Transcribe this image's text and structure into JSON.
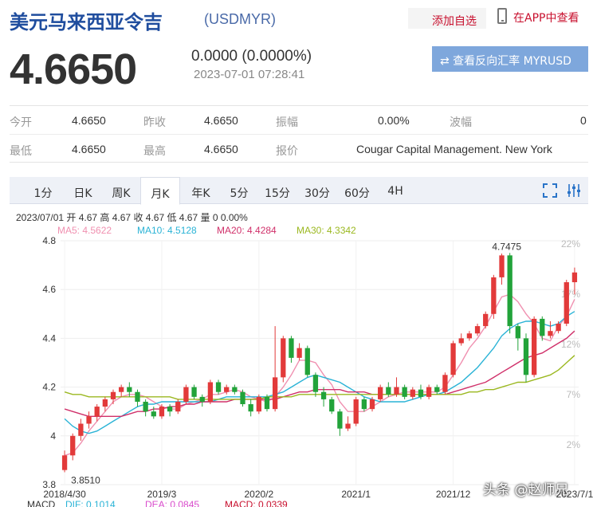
{
  "header": {
    "title": "美元马来西亚令吉",
    "code": "(USDMYR)",
    "add_favorite": "添加自选",
    "view_in_app": "在APP中查看"
  },
  "quote": {
    "price": "4.6650",
    "change": "0.0000 (0.0000%)",
    "time": "2023-07-01 07:28:41",
    "reverse_button": "⇄ 查看反向汇率 MYRUSD"
  },
  "stats": {
    "open_label": "今开",
    "open": "4.6650",
    "prev_close_label": "昨收",
    "prev_close": "4.6650",
    "amplitude_label": "振幅",
    "amplitude": "0.00%",
    "wave_label": "波幅",
    "wave": "0",
    "low_label": "最低",
    "low": "4.6650",
    "high_label": "最高",
    "high": "4.6650",
    "quote_label": "报价",
    "quote_source": "Cougar Capital Management. New York"
  },
  "tabs": [
    "1分",
    "日K",
    "周K",
    "月K",
    "年K",
    "5分",
    "15分",
    "30分",
    "60分",
    "4H"
  ],
  "active_tab": "月K",
  "chart_info": {
    "summary": "2023/07/01 开 4.67 高 4.67 收 4.67 低 4.67 量 0 0.00%",
    "ma5": "MA5: 4.5622",
    "ma10": "MA10: 4.5128",
    "ma20": "MA20: 4.4284",
    "ma30": "MA30: 4.3342",
    "ma_colors": {
      "ma5": "#f090b0",
      "ma10": "#2ab3d6",
      "ma20": "#d0306a",
      "ma30": "#9bb820"
    },
    "bottom": {
      "macd_label": "MACD",
      "dif": "DIF: 0.1014",
      "dea": "DEA: 0.0845",
      "macd": "MACD: 0.0339"
    },
    "watermark": "头条 @赵师兄"
  },
  "chart_data": {
    "type": "candlestick",
    "title": "",
    "y_ticks": [
      "4.8",
      "4.6",
      "4.4",
      "4.2",
      "4",
      "3.8"
    ],
    "y_right_ticks": [
      "22%",
      "17%",
      "12%",
      "7%",
      "2%"
    ],
    "x_ticks": [
      "2018/4/30",
      "2019/3",
      "2020/2",
      "2021/1",
      "2021/12",
      "2023/7/1"
    ],
    "ylim": [
      3.8,
      4.8
    ],
    "max_label": "4.7475",
    "min_label": "3.8510",
    "up_color": "#e23a3a",
    "down_color": "#22a33a",
    "candles": [
      [
        3.86,
        3.92,
        3.94,
        3.851
      ],
      [
        3.92,
        4.0,
        4.01,
        3.9
      ],
      [
        4.0,
        4.05,
        4.07,
        3.98
      ],
      [
        4.05,
        4.08,
        4.1,
        4.03
      ],
      [
        4.08,
        4.12,
        4.13,
        4.06
      ],
      [
        4.12,
        4.15,
        4.16,
        4.1
      ],
      [
        4.15,
        4.18,
        4.19,
        4.13
      ],
      [
        4.18,
        4.2,
        4.21,
        4.16
      ],
      [
        4.2,
        4.18,
        4.22,
        4.16
      ],
      [
        4.18,
        4.14,
        4.19,
        4.12
      ],
      [
        4.14,
        4.1,
        4.15,
        4.08
      ],
      [
        4.1,
        4.08,
        4.12,
        4.07
      ],
      [
        4.08,
        4.12,
        4.13,
        4.07
      ],
      [
        4.12,
        4.1,
        4.13,
        4.08
      ],
      [
        4.1,
        4.14,
        4.15,
        4.09
      ],
      [
        4.14,
        4.2,
        4.21,
        4.13
      ],
      [
        4.2,
        4.16,
        4.21,
        4.15
      ],
      [
        4.16,
        4.14,
        4.17,
        4.12
      ],
      [
        4.14,
        4.22,
        4.23,
        4.13
      ],
      [
        4.22,
        4.18,
        4.23,
        4.17
      ],
      [
        4.18,
        4.2,
        4.21,
        4.17
      ],
      [
        4.2,
        4.18,
        4.21,
        4.17
      ],
      [
        4.18,
        4.13,
        4.19,
        4.12
      ],
      [
        4.13,
        4.1,
        4.15,
        4.08
      ],
      [
        4.1,
        4.16,
        4.17,
        4.09
      ],
      [
        4.16,
        4.11,
        4.17,
        4.1
      ],
      [
        4.11,
        4.24,
        4.45,
        4.1
      ],
      [
        4.24,
        4.4,
        4.41,
        4.22
      ],
      [
        4.4,
        4.32,
        4.41,
        4.3
      ],
      [
        4.32,
        4.36,
        4.38,
        4.31
      ],
      [
        4.36,
        4.25,
        4.37,
        4.24
      ],
      [
        4.25,
        4.18,
        4.26,
        4.16
      ],
      [
        4.18,
        4.15,
        4.2,
        4.12
      ],
      [
        4.15,
        4.1,
        4.16,
        4.09
      ],
      [
        4.1,
        4.03,
        4.11,
        4.0
      ],
      [
        4.03,
        4.05,
        4.08,
        4.02
      ],
      [
        4.05,
        4.15,
        4.16,
        4.04
      ],
      [
        4.15,
        4.11,
        4.16,
        4.1
      ],
      [
        4.11,
        4.15,
        4.16,
        4.1
      ],
      [
        4.15,
        4.2,
        4.21,
        4.14
      ],
      [
        4.2,
        4.17,
        4.22,
        4.16
      ],
      [
        4.17,
        4.2,
        4.24,
        4.16
      ],
      [
        4.2,
        4.16,
        4.21,
        4.15
      ],
      [
        4.16,
        4.19,
        4.2,
        4.15
      ],
      [
        4.19,
        4.16,
        4.21,
        4.15
      ],
      [
        4.16,
        4.2,
        4.21,
        4.15
      ],
      [
        4.2,
        4.18,
        4.21,
        4.17
      ],
      [
        4.18,
        4.25,
        4.26,
        4.17
      ],
      [
        4.25,
        4.38,
        4.39,
        4.24
      ],
      [
        4.38,
        4.4,
        4.42,
        4.37
      ],
      [
        4.4,
        4.42,
        4.43,
        4.39
      ],
      [
        4.42,
        4.45,
        4.46,
        4.41
      ],
      [
        4.45,
        4.5,
        4.51,
        4.44
      ],
      [
        4.5,
        4.65,
        4.66,
        4.48
      ],
      [
        4.65,
        4.74,
        4.7475,
        4.62
      ],
      [
        4.74,
        4.45,
        4.75,
        4.42
      ],
      [
        4.45,
        4.4,
        4.46,
        4.35
      ],
      [
        4.4,
        4.25,
        4.42,
        4.22
      ],
      [
        4.25,
        4.48,
        4.49,
        4.24
      ],
      [
        4.48,
        4.41,
        4.49,
        4.39
      ],
      [
        4.41,
        4.43,
        4.47,
        4.4
      ],
      [
        4.43,
        4.46,
        4.47,
        4.42
      ],
      [
        4.46,
        4.63,
        4.64,
        4.45
      ],
      [
        4.63,
        4.67,
        4.69,
        4.58
      ]
    ],
    "series": [
      {
        "name": "MA5",
        "color": "#f090b0",
        "values": [
          3.92,
          3.93,
          3.97,
          4.02,
          4.06,
          4.1,
          4.14,
          4.16,
          4.17,
          4.17,
          4.16,
          4.14,
          4.12,
          4.11,
          4.11,
          4.13,
          4.14,
          4.15,
          4.17,
          4.17,
          4.18,
          4.19,
          4.18,
          4.16,
          4.15,
          4.14,
          4.16,
          4.2,
          4.25,
          4.31,
          4.31,
          4.3,
          4.25,
          4.21,
          4.14,
          4.1,
          4.1,
          4.1,
          4.12,
          4.14,
          4.16,
          4.17,
          4.18,
          4.18,
          4.18,
          4.18,
          4.18,
          4.2,
          4.25,
          4.3,
          4.36,
          4.4,
          4.45,
          4.51,
          4.57,
          4.58,
          4.55,
          4.5,
          4.46,
          4.4,
          4.39,
          4.45,
          4.49,
          4.56
        ]
      },
      {
        "name": "MA10",
        "color": "#2ab3d6",
        "values": [
          4.07,
          4.04,
          4.02,
          4.01,
          4.02,
          4.04,
          4.06,
          4.08,
          4.1,
          4.12,
          4.13,
          4.13,
          4.14,
          4.14,
          4.14,
          4.14,
          4.14,
          4.14,
          4.14,
          4.15,
          4.16,
          4.16,
          4.16,
          4.16,
          4.16,
          4.16,
          4.17,
          4.18,
          4.2,
          4.22,
          4.24,
          4.25,
          4.24,
          4.23,
          4.22,
          4.2,
          4.18,
          4.16,
          4.15,
          4.14,
          4.14,
          4.14,
          4.14,
          4.15,
          4.16,
          4.17,
          4.17,
          4.18,
          4.2,
          4.22,
          4.25,
          4.28,
          4.32,
          4.36,
          4.41,
          4.44,
          4.46,
          4.47,
          4.47,
          4.46,
          4.45,
          4.46,
          4.49,
          4.51
        ]
      },
      {
        "name": "MA20",
        "color": "#d0306a",
        "values": [
          4.11,
          4.1,
          4.09,
          4.08,
          4.08,
          4.08,
          4.08,
          4.08,
          4.09,
          4.1,
          4.1,
          4.11,
          4.11,
          4.12,
          4.12,
          4.13,
          4.13,
          4.14,
          4.14,
          4.14,
          4.14,
          4.15,
          4.15,
          4.15,
          4.15,
          4.15,
          4.15,
          4.16,
          4.17,
          4.18,
          4.18,
          4.19,
          4.19,
          4.19,
          4.19,
          4.18,
          4.18,
          4.18,
          4.17,
          4.17,
          4.17,
          4.17,
          4.17,
          4.17,
          4.17,
          4.17,
          4.17,
          4.17,
          4.18,
          4.19,
          4.2,
          4.21,
          4.22,
          4.24,
          4.26,
          4.28,
          4.3,
          4.32,
          4.33,
          4.34,
          4.36,
          4.38,
          4.4,
          4.43
        ]
      },
      {
        "name": "MA30",
        "color": "#9bb820",
        "values": [
          4.18,
          4.17,
          4.17,
          4.16,
          4.16,
          4.16,
          4.16,
          4.16,
          4.16,
          4.16,
          4.16,
          4.16,
          4.16,
          4.16,
          4.15,
          4.15,
          4.15,
          4.15,
          4.15,
          4.15,
          4.15,
          4.15,
          4.15,
          4.15,
          4.15,
          4.16,
          4.16,
          4.16,
          4.16,
          4.17,
          4.17,
          4.17,
          4.17,
          4.17,
          4.17,
          4.17,
          4.17,
          4.17,
          4.17,
          4.17,
          4.17,
          4.17,
          4.17,
          4.17,
          4.17,
          4.17,
          4.17,
          4.17,
          4.17,
          4.17,
          4.18,
          4.18,
          4.19,
          4.19,
          4.2,
          4.21,
          4.22,
          4.22,
          4.23,
          4.24,
          4.25,
          4.27,
          4.3,
          4.33
        ]
      }
    ]
  }
}
